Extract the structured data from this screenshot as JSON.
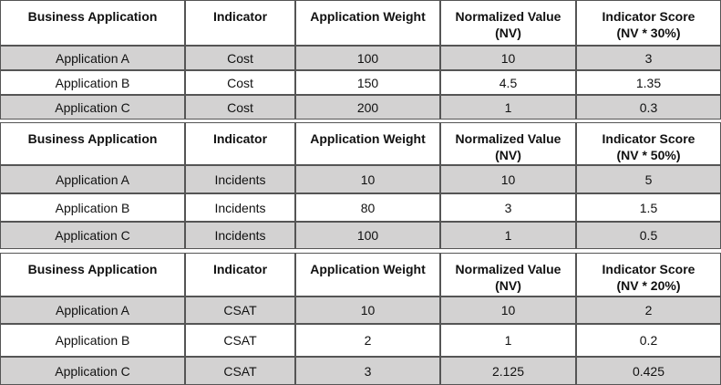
{
  "tables": [
    {
      "header": [
        "Business Application",
        "Indicator",
        "Application Weight",
        "Normalized Value\n(NV)",
        "Indicator Score\n(NV * 30%)"
      ],
      "rows": [
        [
          "Application A",
          "Cost",
          "100",
          "10",
          "3"
        ],
        [
          "Application B",
          "Cost",
          "150",
          "4.5",
          "1.35"
        ],
        [
          "Application C",
          "Cost",
          "200",
          "1",
          "0.3"
        ]
      ]
    },
    {
      "header": [
        "Business Application",
        "Indicator",
        "Application Weight",
        "Normalized Value\n(NV)",
        "Indicator Score\n(NV * 50%)"
      ],
      "rows": [
        [
          "Application A",
          "Incidents",
          "10",
          "10",
          "5"
        ],
        [
          "Application B",
          "Incidents",
          "80",
          "3",
          "1.5"
        ],
        [
          "Application C",
          "Incidents",
          "100",
          "1",
          "0.5"
        ]
      ]
    },
    {
      "header": [
        "Business Application",
        "Indicator",
        "Application Weight",
        "Normalized Value\n(NV)",
        "Indicator Score\n(NV * 20%)"
      ],
      "rows": [
        [
          "Application A",
          "CSAT",
          "10",
          "10",
          "2"
        ],
        [
          "Application B",
          "CSAT",
          "2",
          "1",
          "0.2"
        ],
        [
          "Application C",
          "CSAT",
          "3",
          "2.125",
          "0.425"
        ]
      ]
    }
  ]
}
